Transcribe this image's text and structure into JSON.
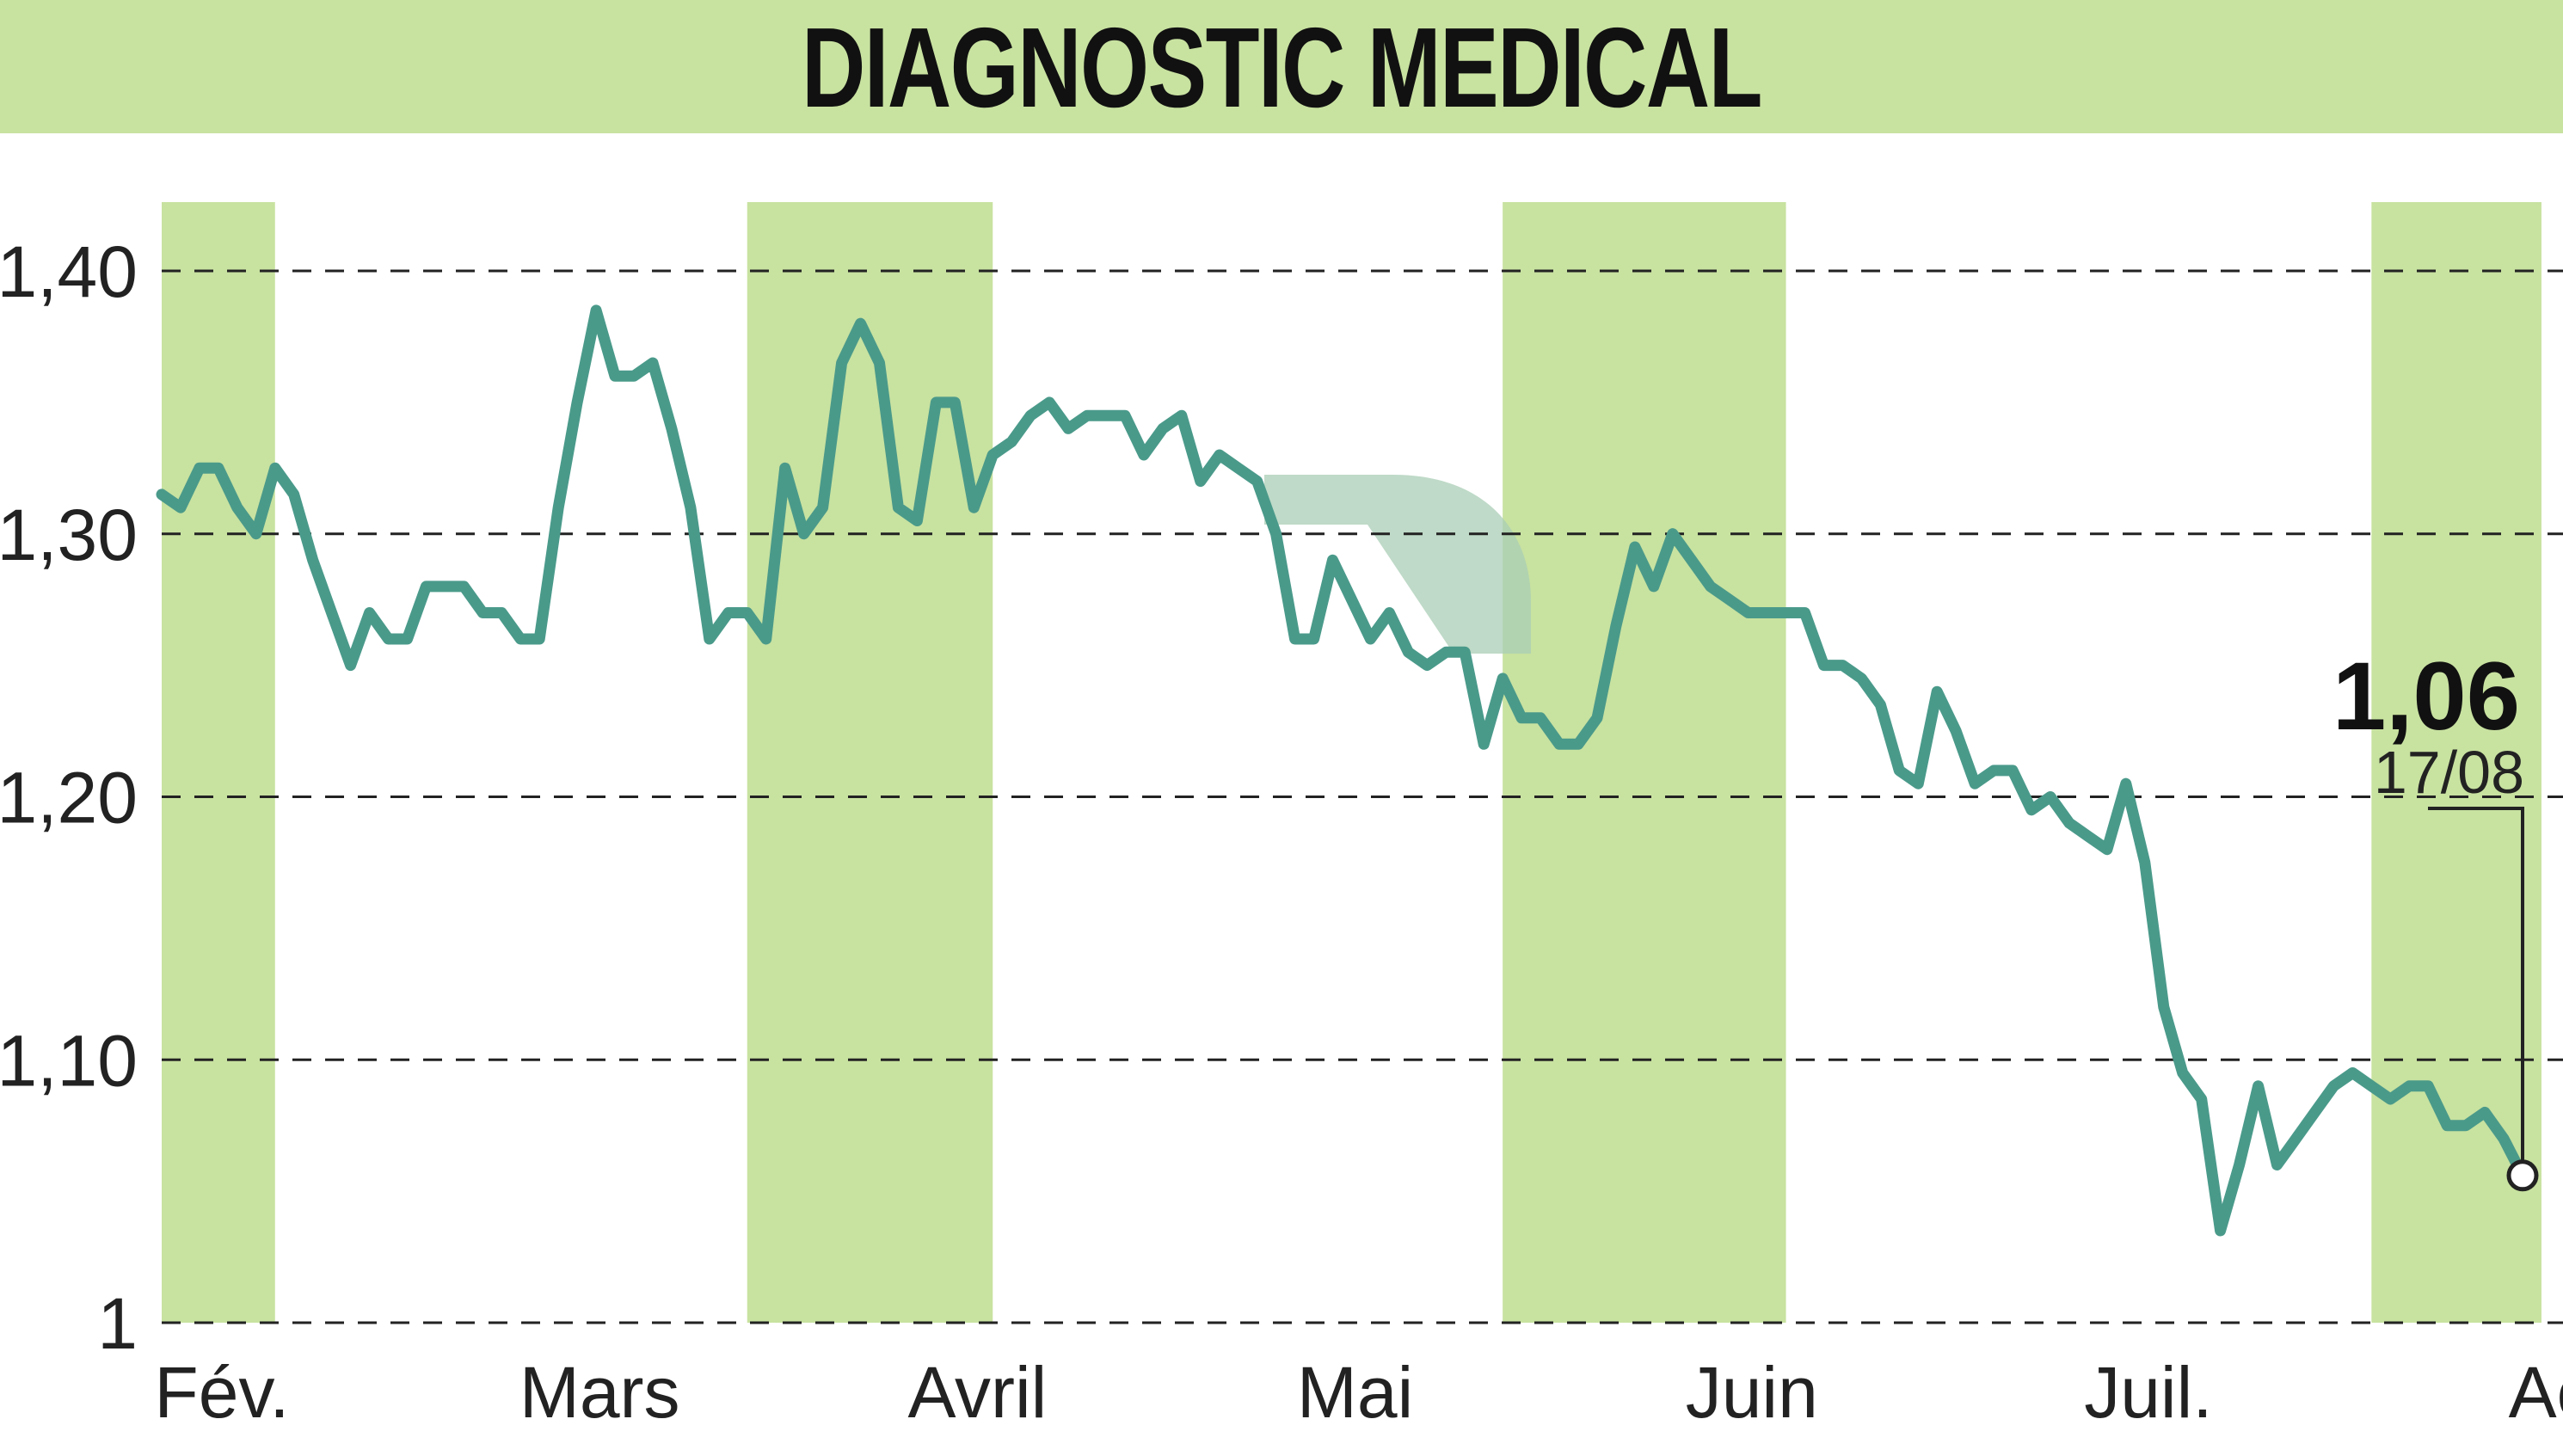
{
  "title": "DIAGNOSTIC MEDICAL",
  "colors": {
    "title_bg": "#c8e2a0",
    "band": "#c8e2a0",
    "line": "#4a9a8a",
    "grid": "#222222",
    "watermark": "#a9cdb6"
  },
  "chart_data": {
    "type": "line",
    "title": "DIAGNOSTIC MEDICAL",
    "ylim": [
      1.0,
      1.4
    ],
    "yticks": [
      1.0,
      1.1,
      1.2,
      1.3,
      1.4
    ],
    "ytick_labels": [
      "1",
      "1,10",
      "1,20",
      "1,30",
      "1,40"
    ],
    "grid": "horizontal dashed",
    "months": [
      "Fév.",
      "Mars",
      "Avril",
      "Mai",
      "Juin",
      "Juil.",
      "Août"
    ],
    "month_ticks": [
      0,
      20,
      40,
      60,
      81,
      102,
      125
    ],
    "shaded_months": [
      [
        0,
        6
      ],
      [
        31,
        44
      ],
      [
        71,
        86
      ],
      [
        117,
        126
      ]
    ],
    "series": [
      {
        "values": [
          1.315,
          1.31,
          1.325,
          1.325,
          1.31,
          1.3,
          1.325,
          1.315,
          1.29,
          1.27,
          1.25,
          1.27,
          1.26,
          1.26,
          1.28,
          1.28,
          1.28,
          1.27,
          1.27,
          1.26,
          1.26,
          1.31,
          1.35,
          1.385,
          1.36,
          1.36,
          1.365,
          1.34,
          1.31,
          1.26,
          1.27,
          1.27,
          1.26,
          1.325,
          1.3,
          1.31,
          1.365,
          1.38,
          1.365,
          1.31,
          1.305,
          1.35,
          1.35,
          1.31,
          1.33,
          1.335,
          1.345,
          1.35,
          1.34,
          1.345,
          1.345,
          1.345,
          1.33,
          1.34,
          1.345,
          1.32,
          1.33,
          1.325,
          1.32,
          1.3,
          1.26,
          1.26,
          1.29,
          1.275,
          1.26,
          1.27,
          1.255,
          1.25,
          1.255,
          1.255,
          1.22,
          1.245,
          1.23,
          1.23,
          1.22,
          1.22,
          1.23,
          1.265,
          1.295,
          1.28,
          1.3,
          1.29,
          1.28,
          1.275,
          1.27,
          1.27,
          1.27,
          1.27,
          1.25,
          1.25,
          1.245,
          1.235,
          1.21,
          1.205,
          1.24,
          1.225,
          1.205,
          1.21,
          1.21,
          1.195,
          1.2,
          1.19,
          1.185,
          1.18,
          1.205,
          1.175,
          1.12,
          1.095,
          1.085,
          1.035,
          1.06,
          1.09,
          1.06,
          1.07,
          1.08,
          1.09,
          1.095,
          1.09,
          1.085,
          1.09,
          1.09,
          1.075,
          1.075,
          1.08,
          1.07,
          1.056
        ]
      }
    ],
    "last_value": "1,06",
    "last_date": "17/08"
  }
}
